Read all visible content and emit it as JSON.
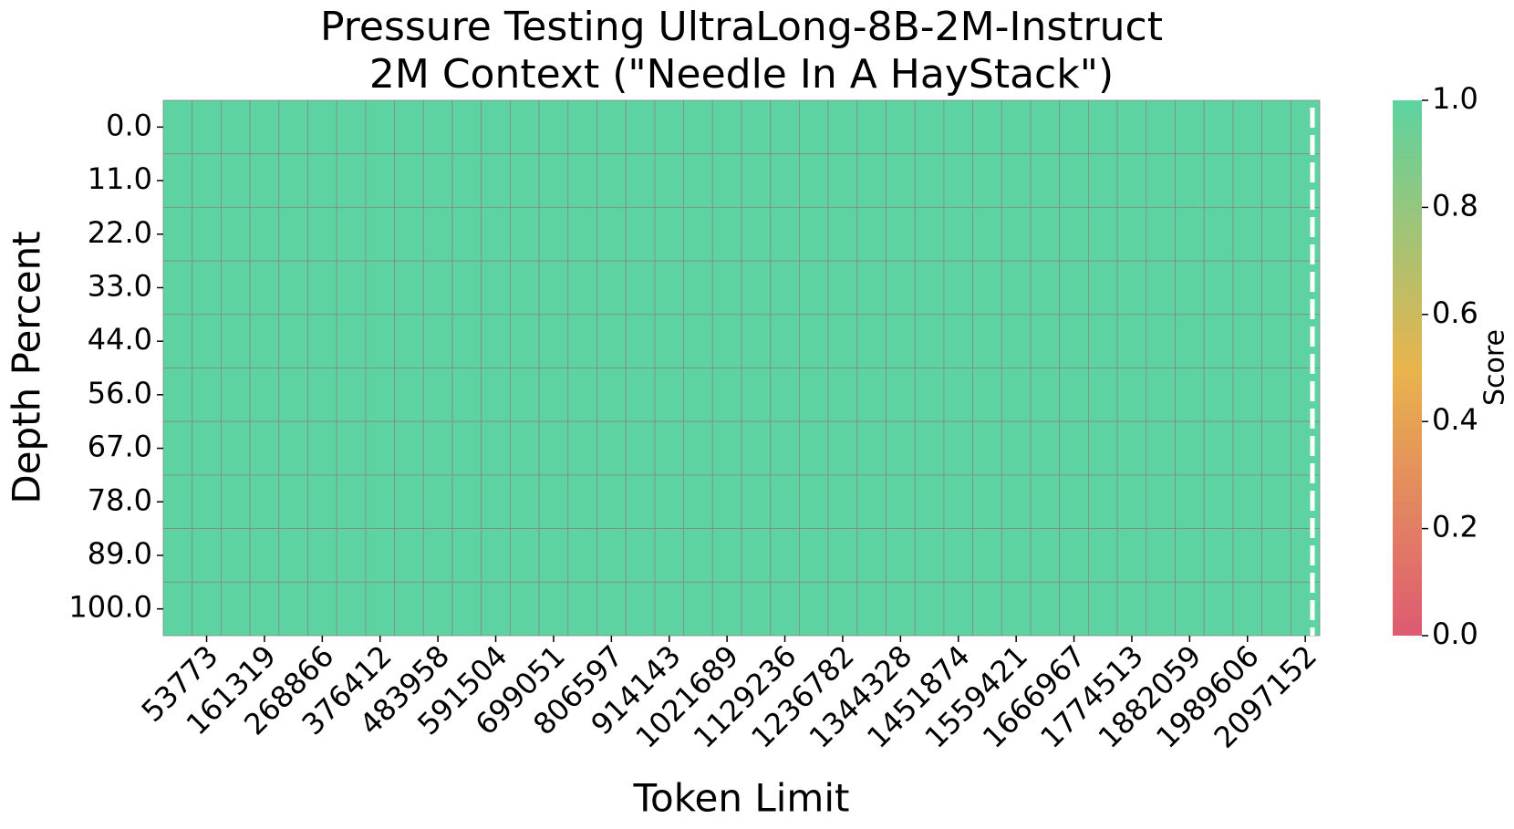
{
  "chart_data": {
    "type": "heatmap",
    "title": "Pressure Testing UltraLong-8B-2M-Instruct",
    "subtitle": "2M Context (\"Needle In A HayStack\")",
    "x_label": "Token Limit",
    "y_label": "Depth Percent",
    "colorbar_label": "Score",
    "categories": [
      null,
      53773,
      null,
      161319,
      null,
      268866,
      null,
      376412,
      null,
      483958,
      null,
      591504,
      null,
      699051,
      null,
      806597,
      null,
      914143,
      null,
      1021689,
      null,
      1129236,
      null,
      1236782,
      null,
      1344328,
      null,
      1451874,
      null,
      1559421,
      null,
      1666967,
      null,
      1774513,
      null,
      1882059,
      null,
      1989606,
      null,
      2097152
    ],
    "rows": [
      "0.0",
      "11.0",
      "22.0",
      "33.0",
      "44.0",
      "56.0",
      "67.0",
      "78.0",
      "89.0",
      "100.0"
    ],
    "values": [
      [
        1,
        1,
        1,
        1,
        1,
        1,
        1,
        1,
        1,
        1,
        1,
        1,
        1,
        1,
        1,
        1,
        1,
        1,
        1,
        1,
        1,
        1,
        1,
        1,
        1,
        1,
        1,
        1,
        1,
        1,
        1,
        1,
        1,
        1,
        1,
        1,
        1,
        1,
        1,
        1
      ],
      [
        1,
        1,
        1,
        1,
        1,
        1,
        1,
        1,
        1,
        1,
        1,
        1,
        1,
        1,
        1,
        1,
        1,
        1,
        1,
        1,
        1,
        1,
        1,
        1,
        1,
        1,
        1,
        1,
        1,
        1,
        1,
        1,
        1,
        1,
        1,
        1,
        1,
        1,
        1,
        1
      ],
      [
        1,
        1,
        1,
        1,
        1,
        1,
        1,
        1,
        1,
        1,
        1,
        1,
        1,
        1,
        1,
        1,
        1,
        1,
        1,
        1,
        1,
        1,
        1,
        1,
        1,
        1,
        1,
        1,
        1,
        1,
        1,
        1,
        1,
        1,
        1,
        1,
        1,
        1,
        1,
        1
      ],
      [
        1,
        1,
        1,
        1,
        1,
        1,
        1,
        1,
        1,
        1,
        1,
        1,
        1,
        1,
        1,
        1,
        1,
        1,
        1,
        1,
        1,
        1,
        1,
        1,
        1,
        1,
        1,
        1,
        1,
        1,
        1,
        1,
        1,
        1,
        1,
        1,
        1,
        1,
        1,
        1
      ],
      [
        1,
        1,
        1,
        1,
        1,
        1,
        1,
        1,
        1,
        1,
        1,
        1,
        1,
        1,
        1,
        1,
        1,
        1,
        1,
        1,
        1,
        1,
        1,
        1,
        1,
        1,
        1,
        1,
        1,
        1,
        1,
        1,
        1,
        1,
        1,
        1,
        1,
        1,
        1,
        1
      ],
      [
        1,
        1,
        1,
        1,
        1,
        1,
        1,
        1,
        1,
        1,
        1,
        1,
        1,
        1,
        1,
        1,
        1,
        1,
        1,
        1,
        1,
        1,
        1,
        1,
        1,
        1,
        1,
        1,
        1,
        1,
        1,
        1,
        1,
        1,
        1,
        1,
        1,
        1,
        1,
        1
      ],
      [
        1,
        1,
        1,
        1,
        1,
        1,
        1,
        1,
        1,
        1,
        1,
        1,
        1,
        1,
        1,
        1,
        1,
        1,
        1,
        1,
        1,
        1,
        1,
        1,
        1,
        1,
        1,
        1,
        1,
        1,
        1,
        1,
        1,
        1,
        1,
        1,
        1,
        1,
        1,
        1
      ],
      [
        1,
        1,
        1,
        1,
        1,
        1,
        1,
        1,
        1,
        1,
        1,
        1,
        1,
        1,
        1,
        1,
        1,
        1,
        1,
        1,
        1,
        1,
        1,
        1,
        1,
        1,
        1,
        1,
        1,
        1,
        1,
        1,
        1,
        1,
        1,
        1,
        1,
        1,
        1,
        1
      ],
      [
        1,
        1,
        1,
        1,
        1,
        1,
        1,
        1,
        1,
        1,
        1,
        1,
        1,
        1,
        1,
        1,
        1,
        1,
        1,
        1,
        1,
        1,
        1,
        1,
        1,
        1,
        1,
        1,
        1,
        1,
        1,
        1,
        1,
        1,
        1,
        1,
        1,
        1,
        1,
        1
      ],
      [
        1,
        1,
        1,
        1,
        1,
        1,
        1,
        1,
        1,
        1,
        1,
        1,
        1,
        1,
        1,
        1,
        1,
        1,
        1,
        1,
        1,
        1,
        1,
        1,
        1,
        1,
        1,
        1,
        1,
        1,
        1,
        1,
        1,
        1,
        1,
        1,
        1,
        1,
        1,
        1
      ]
    ],
    "colormap": [
      "#de5a72",
      "#e8b44c",
      "#5cd3a0"
    ],
    "clim": [
      0,
      1
    ],
    "cticks": [
      {
        "value": 0,
        "label": "0.0"
      },
      {
        "value": 0.2,
        "label": "0.2"
      },
      {
        "value": 0.4,
        "label": "0.4"
      },
      {
        "value": 0.6,
        "label": "0.6"
      },
      {
        "value": 0.8,
        "label": "0.8"
      },
      {
        "value": 1,
        "label": "1.0"
      }
    ]
  }
}
